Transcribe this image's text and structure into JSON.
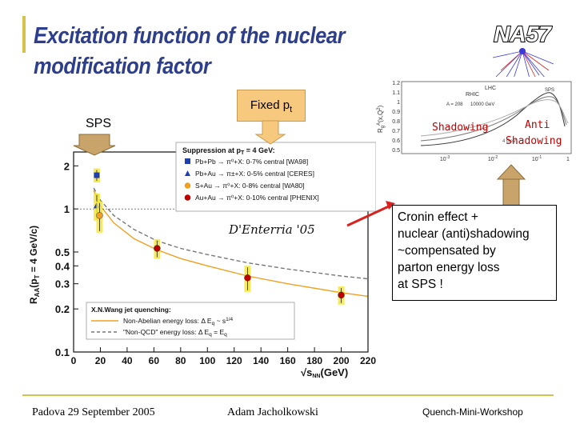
{
  "slide": {
    "title_line1": "Excitation function of the nuclear",
    "title_line2": "modification factor",
    "fixed_pt_label": "Fixed p",
    "fixed_pt_sub": "t",
    "sps_label": "SPS",
    "callout_lines": [
      "Cronin effect +",
      " nuclear (anti)shadowing",
      "~compensated by",
      "parton energy loss",
      " at SPS !"
    ],
    "footer_left": "Padova 29 September 2005",
    "footer_mid": "Adam Jacholkowski",
    "footer_right": "Quench-Mini-Workshop",
    "logo_text": "NA57",
    "colors": {
      "title": "#2c3e8c",
      "accent": "#d8c34a",
      "box_fill": "#f7c97e",
      "arrow_red": "#d9211f",
      "arrow_tan": "#c8a46a"
    }
  },
  "inset_data": {
    "labels": [
      "RHIC",
      "LHC",
      "SPS"
    ],
    "ylabel": "R",
    "ylabel_sub": "g",
    "ylabel_sup": "A",
    "ylabel_arg": "(x,Q",
    "ylabel_arg_sup": "2",
    "ylabel_close": ")",
    "ylabel_detail": "A = 208",
    "ylabel_detail2": "10000 GeV",
    "y_ticks": [
      "1.2",
      "1.1",
      "1",
      "0.9",
      "0.8",
      "0.7",
      "0.6",
      "0.5"
    ],
    "x_ticks": [
      "10-3",
      "10-2",
      "10-1"
    ],
    "x_ticks_exp": [
      "-3",
      "-2",
      "-1"
    ],
    "x_tick_base": "10",
    "x_last": "1",
    "shadowing_label": "Shadowing",
    "antishadowing_line1": "Anti",
    "antishadowing_line2": "Shadowing",
    "xlabel_small": "4 GeV"
  },
  "chart_data": {
    "type": "scatter",
    "title": "",
    "xlabel": "√s",
    "xlabel_sub": "NN",
    "xlabel_unit": "(GeV)",
    "ylabel": "R",
    "ylabel_sub": "AA",
    "ylabel_paren": "(p",
    "ylabel_paren_sub": "T",
    "ylabel_rest": " = 4 GeV/c)",
    "xlim": [
      0,
      220
    ],
    "x_ticks": [
      0,
      20,
      40,
      60,
      80,
      100,
      120,
      140,
      160,
      180,
      200,
      220
    ],
    "y_scale": "log",
    "ylim": [
      0.1,
      2.5
    ],
    "y_ticks": [
      0.1,
      0.2,
      0.3,
      0.4,
      0.5,
      1,
      2
    ],
    "y_tick_labels": [
      "0.1",
      "0.2",
      "0.3",
      "0.4",
      "0.5",
      "1",
      "2"
    ],
    "annotation": "D'Enterria '05",
    "legend_top": {
      "title": "Suppression at p",
      "title_sub": "T",
      "title_rest": " = 4 GeV:",
      "entries": [
        {
          "label": "Pb+Pb → π⁰+X: 0-7% central [WA98]",
          "marker": "square",
          "color": "#1f3fb0"
        },
        {
          "label": "Pb+Au → π±+X: 0-5% central [CERES]",
          "marker": "triangle",
          "color": "#1f3fb0"
        },
        {
          "label": "S+Au → π⁰+X: 0-8% central [WA80]",
          "marker": "circle",
          "color": "#f0a020"
        },
        {
          "label": "Au+Au → π⁰+X: 0-10% central [PHENIX]",
          "marker": "circle",
          "color": "#c00000"
        }
      ]
    },
    "legend_bottom": {
      "title": "X.N.Wang jet quenching:",
      "entries": [
        {
          "label": "Non-Abelian energy loss: Δ E",
          "label_sub": "q",
          "label_rest": " ~ s",
          "label_sup": "1/4",
          "style": "solid"
        },
        {
          "label": "\"Non-QCD\" energy loss: Δ E",
          "label_sub": "q",
          "label_rest": " = E",
          "label_sub2": "q",
          "style": "dashed"
        }
      ]
    },
    "series": [
      {
        "name": "Pb+Pb → π⁰+X: 0-7% central [WA98]",
        "marker": "square",
        "color": "#1f3fb0",
        "points": [
          {
            "x": 17.3,
            "y": 1.72,
            "err": 0.15
          }
        ]
      },
      {
        "name": "Pb+Au → π±+X: 0-5% central [CERES]",
        "marker": "triangle",
        "color": "#1f3fb0",
        "points": [
          {
            "x": 17.3,
            "y": 1.05,
            "err": 0.2
          }
        ]
      },
      {
        "name": "S+Au → π⁰+X: 0-8% central [WA80]",
        "marker": "circle",
        "color": "#f0a020",
        "points": [
          {
            "x": 19.4,
            "y": 0.9,
            "err": 0.2
          }
        ]
      },
      {
        "name": "Au+Au → π⁰+X: 0-10% central [PHENIX]",
        "marker": "circle",
        "color": "#c00000",
        "points": [
          {
            "x": 62.4,
            "y": 0.53,
            "err": 0.07
          },
          {
            "x": 130,
            "y": 0.33,
            "err": 0.06
          },
          {
            "x": 200,
            "y": 0.25,
            "err": 0.03
          }
        ]
      }
    ],
    "curves": [
      {
        "name": "Non-Abelian energy loss",
        "style": "solid",
        "color": "#f0a020",
        "x": [
          15,
          20,
          30,
          45,
          62,
          80,
          100,
          130,
          160,
          200,
          220
        ],
        "y": [
          1.35,
          1.05,
          0.8,
          0.62,
          0.52,
          0.45,
          0.4,
          0.34,
          0.3,
          0.26,
          0.245
        ]
      },
      {
        "name": "Non-QCD energy loss",
        "style": "dashed",
        "color": "#777777",
        "x": [
          15,
          20,
          30,
          45,
          62,
          80,
          100,
          130,
          160,
          200,
          220
        ],
        "y": [
          1.4,
          1.15,
          0.9,
          0.72,
          0.6,
          0.53,
          0.48,
          0.42,
          0.38,
          0.34,
          0.325
        ]
      }
    ]
  }
}
